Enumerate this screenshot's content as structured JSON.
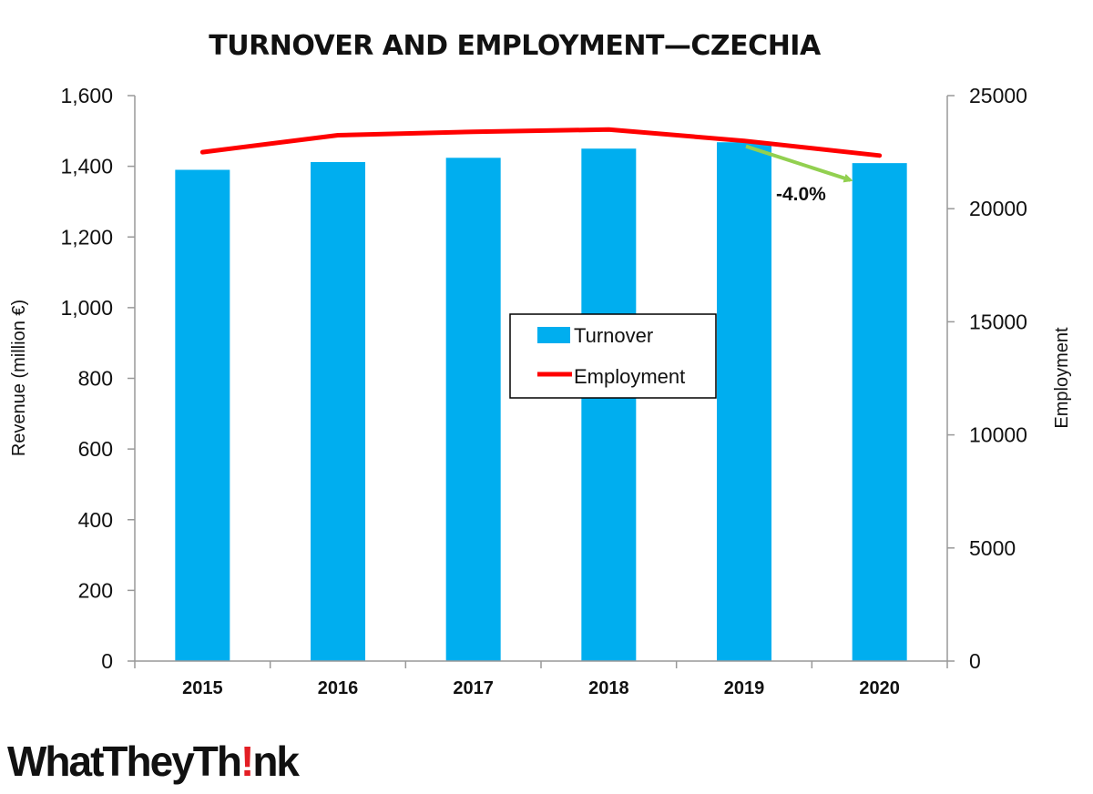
{
  "chart_data": {
    "type": "bar",
    "title": "TURNOVER AND EMPLOYMENT—CZECHIA",
    "categories": [
      "2015",
      "2016",
      "2017",
      "2018",
      "2019",
      "2020"
    ],
    "series": [
      {
        "name": "Turnover",
        "type": "bar",
        "axis": "left",
        "color": "#00AEEF",
        "values": [
          1390,
          1412,
          1424,
          1450,
          1468,
          1409
        ]
      },
      {
        "name": "Employment",
        "type": "line",
        "axis": "right",
        "color": "#FF0000",
        "values": [
          22500,
          23250,
          23400,
          23500,
          23000,
          22350
        ]
      }
    ],
    "ylabel": "Revenue (million €)",
    "y2label": "Employment",
    "ylim": [
      0,
      1600
    ],
    "y2lim": [
      0,
      25000
    ],
    "yticks": [
      "0",
      "200",
      "400",
      "600",
      "800",
      "1,000",
      "1,200",
      "1,400",
      "1,600"
    ],
    "y2ticks": [
      "0",
      "5000",
      "10000",
      "15000",
      "20000",
      "25000"
    ],
    "grid": false,
    "legend_placement": "center",
    "annotation": {
      "text": "-4.0%",
      "color": "#92D050",
      "from": "2019",
      "to": "2020"
    }
  },
  "branding": {
    "logo_text": "WhatTheyThink",
    "logo_accent_color": "#E31E24"
  }
}
